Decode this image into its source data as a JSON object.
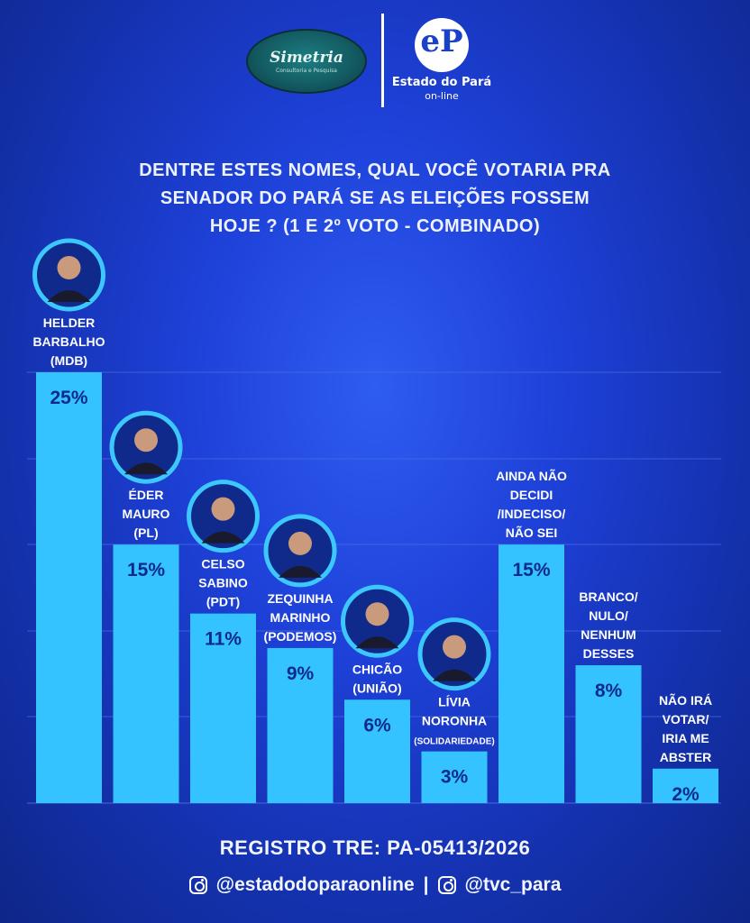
{
  "header": {
    "simetria_name": "Simetria",
    "simetria_sub": "Consultoria e Pesquisa",
    "ep_mark": "eP",
    "ep_name": "Estado do Pará",
    "ep_sub": "on-line"
  },
  "question_lines": [
    "DENTRE ESTES NOMES, QUAL VOCÊ VOTARIA PRA",
    "SENADOR DO PARÁ SE AS ELEIÇÕES FOSSEM",
    "HOJE ? (1 E 2º VOTO - COMBINADO)"
  ],
  "chart_data": {
    "type": "bar",
    "title": "DENTRE ESTES NOMES, QUAL VOCÊ VOTARIA PRA SENADOR DO PARÁ SE AS ELEIÇÕES FOSSEM HOJE ? (1 E 2º VOTO - COMBINADO)",
    "ylim": [
      0,
      25
    ],
    "grid": true,
    "categories": [
      {
        "label_lines": [
          "HELDER",
          "BARBALHO",
          "(MDB)"
        ],
        "photo": true,
        "small_last_line": false
      },
      {
        "label_lines": [
          "ÉDER",
          "MAURO",
          "(PL)"
        ],
        "photo": true,
        "small_last_line": false
      },
      {
        "label_lines": [
          "CELSO",
          "SABINO",
          "(PDT)"
        ],
        "photo": true,
        "small_last_line": false
      },
      {
        "label_lines": [
          "ZEQUINHA",
          "MARINHO",
          "(PODEMOS)"
        ],
        "photo": true,
        "small_last_line": false
      },
      {
        "label_lines": [
          "CHICÃO",
          "(UNIÃO)"
        ],
        "photo": true,
        "small_last_line": false
      },
      {
        "label_lines": [
          "LÍVIA",
          "NORONHA",
          "(SOLIDARIEDADE)"
        ],
        "photo": true,
        "small_last_line": true
      },
      {
        "label_lines": [
          "AINDA NÃO",
          "DECIDI",
          "/INDECISO/",
          "NÃO SEI"
        ],
        "photo": false,
        "small_last_line": false
      },
      {
        "label_lines": [
          "BRANCO/",
          "NULO/",
          "NENHUM",
          "DESSES"
        ],
        "photo": false,
        "small_last_line": false
      },
      {
        "label_lines": [
          "NÃO IRÁ",
          "VOTAR/",
          "IRIA ME",
          "ABSTER"
        ],
        "photo": false,
        "small_last_line": false
      }
    ],
    "values": [
      25,
      15,
      11,
      9,
      6,
      3,
      15,
      8,
      2
    ],
    "value_labels": [
      "25%",
      "15%",
      "11%",
      "9%",
      "6%",
      "3%",
      "15%",
      "8%",
      "2%"
    ],
    "colors": {
      "bar": "#34c3ff",
      "value_text": "#0d2a8c",
      "photo_ring": "#3cc8ff",
      "grid": "#4a6fe6"
    }
  },
  "footer": {
    "registro": "REGISTRO TRE: PA-05413/2026",
    "social_1": "@estadodoparaonline",
    "separator": "|",
    "social_2": "@tvc_para"
  }
}
